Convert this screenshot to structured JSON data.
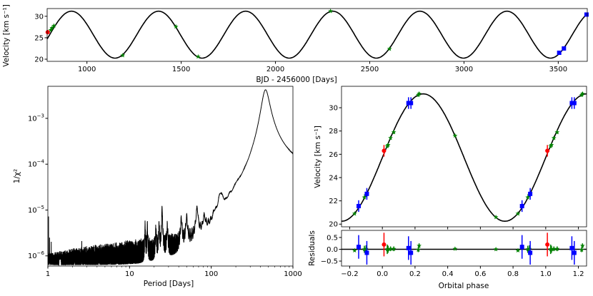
{
  "colors": {
    "instrument_a": "#ff0000",
    "instrument_b": "#008000",
    "instrument_c": "#0000ff",
    "model": "#000000"
  },
  "chart_data": [
    {
      "id": "time_series",
      "type": "scatter",
      "xlabel": "BJD - 2456000 [Days]",
      "ylabel": "Velocity [km s⁻¹]",
      "xlim": [
        789,
        3654
      ],
      "ylim": [
        19.5,
        31.8
      ],
      "xticks": [
        "1000",
        "1500",
        "2000",
        "2500",
        "3000",
        "3500"
      ],
      "yticks": [
        "20",
        "25",
        "30"
      ],
      "model_line": "sinusoid",
      "points": [
        {
          "x": 792,
          "y": 26.3,
          "err": 0.5,
          "color": "red",
          "marker": "circle"
        },
        {
          "x": 808,
          "y": 26.8,
          "err": 0.15,
          "color": "green",
          "marker": "star"
        },
        {
          "x": 815,
          "y": 27.3,
          "err": 0.15,
          "color": "green",
          "marker": "star"
        },
        {
          "x": 825,
          "y": 27.8,
          "err": 0.15,
          "color": "green",
          "marker": "star"
        },
        {
          "x": 1190,
          "y": 20.9,
          "err": 0.15,
          "color": "green",
          "marker": "star"
        },
        {
          "x": 1472,
          "y": 27.6,
          "err": 0.15,
          "color": "green",
          "marker": "star"
        },
        {
          "x": 1590,
          "y": 20.6,
          "err": 0.15,
          "color": "green",
          "marker": "star"
        },
        {
          "x": 2292,
          "y": 31.2,
          "err": 0.15,
          "color": "green",
          "marker": "star"
        },
        {
          "x": 2605,
          "y": 22.4,
          "err": 0.2,
          "color": "green",
          "marker": "star"
        },
        {
          "x": 3505,
          "y": 21.5,
          "err": 0.3,
          "color": "blue",
          "marker": "square"
        },
        {
          "x": 3530,
          "y": 22.5,
          "err": 0.3,
          "color": "blue",
          "marker": "square"
        },
        {
          "x": 3650,
          "y": 30.4,
          "err": 0.3,
          "color": "blue",
          "marker": "square"
        }
      ]
    },
    {
      "id": "periodogram",
      "type": "line",
      "xlabel": "Period [Days]",
      "ylabel": "1/χ²",
      "xscale": "log",
      "yscale": "log",
      "xlim": [
        1,
        1000
      ],
      "ylim": [
        6e-07,
        0.005
      ],
      "xticks": [
        "1",
        "10",
        "100",
        "1000"
      ],
      "yticks": [
        {
          "base": "10",
          "exp": "−6",
          "value": 1e-06
        },
        {
          "base": "10",
          "exp": "−5",
          "value": 1e-05
        },
        {
          "base": "10",
          "exp": "−4",
          "value": 0.0001
        },
        {
          "base": "10",
          "exp": "−3",
          "value": 0.001
        }
      ],
      "peaks": [
        [
          1.02,
          7e-06
        ],
        [
          1.05,
          6e-06
        ],
        [
          1.1,
          2.7e-06
        ],
        [
          2.6,
          1.4e-06
        ],
        [
          15.5,
          4e-06
        ],
        [
          16.5,
          4e-06
        ],
        [
          21,
          3e-06
        ],
        [
          23,
          3.8e-06
        ],
        [
          25,
          1.05e-05
        ],
        [
          29,
          3e-06
        ],
        [
          43,
          4.8e-06
        ],
        [
          50,
          5e-06
        ],
        [
          67,
          8.5e-06
        ],
        [
          82,
          3.5e-06
        ],
        [
          110,
          2.5e-06
        ],
        [
          128,
          1.05e-05
        ],
        [
          135,
          6e-06
        ],
        [
          168,
          3.5e-06
        ],
        [
          205,
          8e-06
        ],
        [
          250,
          3.5e-06
        ],
        [
          280,
          1.6e-06
        ],
        [
          320,
          2.2e-06
        ],
        [
          462,
          0.0042
        ],
        [
          780,
          1.45e-06
        ]
      ]
    },
    {
      "id": "phased_rv",
      "type": "scatter",
      "xlabel": "Orbital phase",
      "ylabel": "Velocity [km s⁻¹]",
      "xlim": [
        -0.25,
        1.25
      ],
      "ylim": [
        19.77,
        31.84
      ],
      "xticks": [
        "−0.2",
        "0.0",
        "0.2",
        "0.4",
        "0.6",
        "0.8",
        "1.0",
        "1.2"
      ],
      "yticks": [
        "20",
        "22",
        "24",
        "26",
        "28",
        "30"
      ],
      "model_line": "sinusoid",
      "points": [
        {
          "phase": 0.01,
          "y": 26.3,
          "err": 0.5,
          "res": 0.2,
          "res_err": 0.5,
          "color": "red",
          "marker": "circle"
        },
        {
          "phase": 0.03,
          "y": 26.7,
          "err": 0.15,
          "res": 0.0,
          "res_err": 0.2,
          "color": "green",
          "marker": "star"
        },
        {
          "phase": 0.035,
          "y": 26.8,
          "err": 0.15,
          "res": 0.0,
          "res_err": 0.15,
          "color": "green",
          "marker": "star"
        },
        {
          "phase": 0.05,
          "y": 27.4,
          "err": 0.15,
          "res": 0.02,
          "res_err": 0.1,
          "color": "green",
          "marker": "star"
        },
        {
          "phase": 0.07,
          "y": 27.9,
          "err": 0.15,
          "res": 0.02,
          "res_err": 0.1,
          "color": "green",
          "marker": "star"
        },
        {
          "phase": 0.16,
          "y": 30.4,
          "err": 0.5,
          "res": 0.05,
          "res_err": 0.5,
          "color": "blue",
          "marker": "square"
        },
        {
          "phase": 0.175,
          "y": 30.4,
          "err": 0.5,
          "res": -0.15,
          "res_err": 0.5,
          "color": "blue",
          "marker": "square"
        },
        {
          "phase": 0.22,
          "y": 31.1,
          "err": 0.15,
          "res": -0.02,
          "res_err": 0.1,
          "color": "green",
          "marker": "star"
        },
        {
          "phase": 0.225,
          "y": 31.2,
          "err": 0.15,
          "res": 0.15,
          "res_err": 0.1,
          "color": "green",
          "marker": "star"
        },
        {
          "phase": 0.445,
          "y": 27.6,
          "err": 0.1,
          "res": 0.02,
          "res_err": 0.05,
          "color": "green",
          "marker": "star"
        },
        {
          "phase": 0.695,
          "y": 20.6,
          "err": 0.1,
          "res": 0.0,
          "res_err": 0.05,
          "color": "green",
          "marker": "star"
        },
        {
          "phase": 0.83,
          "y": 20.9,
          "err": 0.1,
          "res": -0.05,
          "res_err": 0.05,
          "color": "green",
          "marker": "star"
        },
        {
          "phase": 0.855,
          "y": 21.55,
          "err": 0.5,
          "res": 0.1,
          "res_err": 0.5,
          "color": "blue",
          "marker": "square"
        },
        {
          "phase": 0.89,
          "y": 22.3,
          "err": 0.15,
          "res": 0.0,
          "res_err": 0.15,
          "color": "green",
          "marker": "star"
        },
        {
          "phase": 0.9,
          "y": 22.5,
          "err": 0.15,
          "res": 0.02,
          "res_err": 0.15,
          "color": "green",
          "marker": "star"
        },
        {
          "phase": 0.905,
          "y": 22.6,
          "err": 0.5,
          "res": -0.15,
          "res_err": 0.5,
          "color": "blue",
          "marker": "square"
        }
      ]
    },
    {
      "id": "residuals",
      "type": "scatter",
      "ylabel": "Residuals",
      "ylim": [
        -0.71,
        0.8
      ],
      "yticks": [
        "0.5",
        "0.0",
        "−0.5"
      ]
    }
  ]
}
